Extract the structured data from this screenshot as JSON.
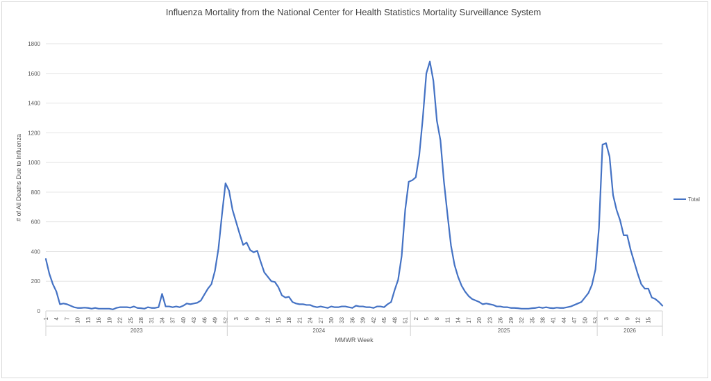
{
  "colors": {
    "series": "#4472C4"
  },
  "chart_data": {
    "type": "line",
    "title": "Influenza Mortality from the National Center for Health Statistics Mortality Surveillance System",
    "xlabel": "MMWR Week",
    "ylabel": "# of All Deaths Due to Influenza",
    "ylim": [
      0,
      1800
    ],
    "y_ticks": [
      0,
      200,
      400,
      600,
      800,
      1000,
      1200,
      1400,
      1600,
      1800
    ],
    "grid": true,
    "legend_position": "right",
    "years": [
      "2023",
      "2024",
      "2025",
      "2026"
    ],
    "series": [
      {
        "name": "Total",
        "values": [
          350,
          250,
          180,
          130,
          45,
          50,
          45,
          35,
          25,
          20,
          20,
          22,
          20,
          15,
          20,
          15,
          15,
          15,
          15,
          10,
          20,
          25,
          25,
          25,
          22,
          30,
          20,
          18,
          15,
          25,
          20,
          20,
          25,
          115,
          30,
          30,
          25,
          30,
          25,
          35,
          50,
          45,
          50,
          55,
          70,
          110,
          150,
          180,
          270,
          420,
          650,
          860,
          810,
          680,
          600,
          520,
          445,
          460,
          410,
          395,
          405,
          330,
          260,
          230,
          200,
          195,
          160,
          105,
          90,
          95,
          60,
          50,
          45,
          45,
          40,
          40,
          30,
          25,
          30,
          25,
          20,
          30,
          25,
          25,
          30,
          30,
          25,
          20,
          35,
          30,
          30,
          25,
          25,
          20,
          30,
          30,
          25,
          45,
          60,
          140,
          210,
          370,
          680,
          870,
          880,
          900,
          1050,
          1300,
          1600,
          1680,
          1550,
          1280,
          1150,
          870,
          650,
          440,
          310,
          230,
          170,
          130,
          100,
          80,
          70,
          60,
          45,
          50,
          45,
          40,
          30,
          30,
          25,
          25,
          20,
          20,
          18,
          15,
          15,
          15,
          18,
          20,
          25,
          20,
          25,
          20,
          18,
          22,
          20,
          20,
          25,
          30,
          40,
          50,
          60,
          90,
          120,
          175,
          280,
          560,
          1120,
          1130,
          1040,
          780,
          680,
          610,
          510,
          510,
          410,
          330,
          250,
          180,
          150,
          150,
          90,
          80,
          60,
          35
        ]
      }
    ],
    "x_tick_labels": [
      "1",
      "4",
      "7",
      "10",
      "13",
      "16",
      "19",
      "22",
      "25",
      "28",
      "31",
      "34",
      "37",
      "40",
      "43",
      "46",
      "49",
      "52",
      "3",
      "6",
      "9",
      "12",
      "15",
      "18",
      "21",
      "24",
      "27",
      "30",
      "33",
      "36",
      "39",
      "42",
      "45",
      "48",
      "51",
      "2",
      "5",
      "8",
      "11",
      "14",
      "17",
      "20",
      "23",
      "26",
      "29",
      "32",
      "35",
      "38",
      "41",
      "44",
      "47",
      "50",
      "53",
      "3",
      "6",
      "9",
      "12",
      "15"
    ]
  }
}
